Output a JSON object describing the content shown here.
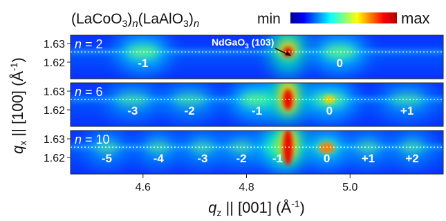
{
  "header": {
    "formula_a_base": "(LaCoO",
    "formula_a_sub": "3",
    "formula_a_close": ")",
    "formula_n": "n",
    "formula_b_base": "(LaAlO",
    "formula_b_sub": "3",
    "formula_b_close": ")",
    "colorbar_min": "min",
    "colorbar_max": "max"
  },
  "colorbar_colors": [
    "#00008f",
    "#0000ff",
    "#0080ff",
    "#00ffff",
    "#80ff80",
    "#ffff00",
    "#ff8000",
    "#ff0000",
    "#b00000"
  ],
  "axes": {
    "y_label_q": "q",
    "y_label_sub": "x",
    "y_label_rest": " || [100] (Å",
    "y_label_exp": "-1",
    "y_label_end": ")",
    "x_label_q": "q",
    "x_label_sub": "z",
    "x_label_rest": " || [001] (Å",
    "x_label_exp": "-1",
    "x_label_end": ")"
  },
  "annotation": {
    "substrate_base": "NdGaO",
    "substrate_sub": "3",
    "substrate_hkl": " (103)"
  },
  "chart_data": {
    "type": "heatmap",
    "x_range": [
      4.46,
      5.18
    ],
    "x_ticks": [
      "4.6",
      "4.8",
      "5.0"
    ],
    "x_tick_values": [
      4.6,
      4.8,
      5.0
    ],
    "y_ticks": [
      "1.63",
      "1.62"
    ],
    "y_tick_values": [
      1.63,
      1.62
    ],
    "substrate_peak": {
      "qz": 4.88,
      "qx": 1.6255
    },
    "panels": [
      {
        "n_label": "2",
        "satellites": [
          {
            "label": "-1",
            "qz": 4.6
          },
          {
            "label": "0",
            "qz": 4.98
          }
        ]
      },
      {
        "n_label": "6",
        "satellites": [
          {
            "label": "-3",
            "qz": 4.58
          },
          {
            "label": "-2",
            "qz": 4.69
          },
          {
            "label": "-1",
            "qz": 4.82
          },
          {
            "label": "0",
            "qz": 4.96
          },
          {
            "label": "+1",
            "qz": 5.11
          }
        ]
      },
      {
        "n_label": "10",
        "satellites": [
          {
            "label": "-5",
            "qz": 4.53
          },
          {
            "label": "-4",
            "qz": 4.63
          },
          {
            "label": "-3",
            "qz": 4.715
          },
          {
            "label": "-2",
            "qz": 4.79
          },
          {
            "label": "-1",
            "qz": 4.86
          },
          {
            "label": "0",
            "qz": 4.955
          },
          {
            "label": "+1",
            "qz": 5.035
          },
          {
            "label": "+2",
            "qz": 5.12
          }
        ]
      }
    ]
  }
}
